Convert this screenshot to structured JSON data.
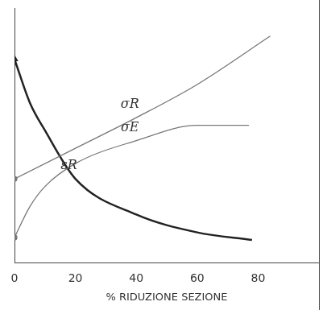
{
  "chart_data": {
    "type": "line",
    "x_label": "% RIDUZIONE SEZIONE",
    "xlim": [
      0,
      100
    ],
    "xticks": [
      0,
      20,
      40,
      60,
      80
    ],
    "ylim": [
      0,
      100
    ],
    "tick_labels": "x",
    "grid": false,
    "series": [
      {
        "name": "σR",
        "color": "#777777",
        "x": [
          0,
          20,
          40,
          60,
          84
        ],
        "values": [
          33,
          45,
          57,
          70,
          89
        ]
      },
      {
        "name": "σE",
        "color": "#777777",
        "x": [
          0,
          5,
          10,
          20,
          40,
          60,
          77
        ],
        "values": [
          10,
          22,
          30,
          39,
          48,
          54,
          54
        ]
      },
      {
        "name": "εR",
        "color": "#222222",
        "x": [
          0,
          5,
          10,
          20,
          40,
          60,
          78
        ],
        "values": [
          80,
          63,
          52,
          33,
          19,
          12,
          9
        ]
      }
    ]
  }
}
